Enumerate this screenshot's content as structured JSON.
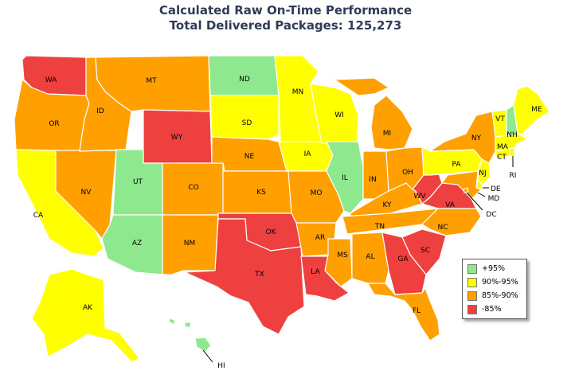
{
  "title": {
    "line1": "Calculated Raw On-Time Performance",
    "line2": "Total Delivered Packages:  125,273"
  },
  "legend": [
    {
      "key": "gt95",
      "label": "+95%",
      "color": "#8ee88e"
    },
    {
      "key": "b90",
      "label": "90%-95%",
      "color": "#ffff00"
    },
    {
      "key": "b85",
      "label": "85%-90%",
      "color": "#ff9f00"
    },
    {
      "key": "lt85",
      "label": "-85%",
      "color": "#ef4040"
    }
  ],
  "states": [
    {
      "abbr": "WA",
      "category": "lt85"
    },
    {
      "abbr": "OR",
      "category": "b85"
    },
    {
      "abbr": "CA",
      "category": "b90"
    },
    {
      "abbr": "NV",
      "category": "b85"
    },
    {
      "abbr": "ID",
      "category": "b85"
    },
    {
      "abbr": "MT",
      "category": "b85"
    },
    {
      "abbr": "WY",
      "category": "lt85"
    },
    {
      "abbr": "UT",
      "category": "gt95"
    },
    {
      "abbr": "AZ",
      "category": "gt95"
    },
    {
      "abbr": "CO",
      "category": "b85"
    },
    {
      "abbr": "NM",
      "category": "b85"
    },
    {
      "abbr": "ND",
      "category": "gt95"
    },
    {
      "abbr": "SD",
      "category": "b90"
    },
    {
      "abbr": "NE",
      "category": "b85"
    },
    {
      "abbr": "KS",
      "category": "b85"
    },
    {
      "abbr": "OK",
      "category": "lt85"
    },
    {
      "abbr": "TX",
      "category": "lt85"
    },
    {
      "abbr": "MN",
      "category": "b90"
    },
    {
      "abbr": "IA",
      "category": "b90"
    },
    {
      "abbr": "MO",
      "category": "b85"
    },
    {
      "abbr": "AR",
      "category": "b85"
    },
    {
      "abbr": "LA",
      "category": "lt85"
    },
    {
      "abbr": "WI",
      "category": "b90"
    },
    {
      "abbr": "IL",
      "category": "gt95"
    },
    {
      "abbr": "MS",
      "category": "b85"
    },
    {
      "abbr": "MI",
      "category": "b85"
    },
    {
      "abbr": "IN",
      "category": "b85"
    },
    {
      "abbr": "KY",
      "category": "b85"
    },
    {
      "abbr": "TN",
      "category": "b85"
    },
    {
      "abbr": "AL",
      "category": "b85"
    },
    {
      "abbr": "OH",
      "category": "b85"
    },
    {
      "abbr": "WV",
      "category": "lt85"
    },
    {
      "abbr": "VA",
      "category": "lt85"
    },
    {
      "abbr": "NC",
      "category": "b85"
    },
    {
      "abbr": "SC",
      "category": "lt85"
    },
    {
      "abbr": "GA",
      "category": "lt85"
    },
    {
      "abbr": "FL",
      "category": "b85"
    },
    {
      "abbr": "PA",
      "category": "b90"
    },
    {
      "abbr": "NY",
      "category": "b85"
    },
    {
      "abbr": "NJ",
      "category": "b90"
    },
    {
      "abbr": "DE",
      "category": "b90"
    },
    {
      "abbr": "MD",
      "category": "b85"
    },
    {
      "abbr": "DC",
      "category": "b85"
    },
    {
      "abbr": "CT",
      "category": "b90"
    },
    {
      "abbr": "RI",
      "category": "b90"
    },
    {
      "abbr": "MA",
      "category": "b90"
    },
    {
      "abbr": "VT",
      "category": "b90"
    },
    {
      "abbr": "NH",
      "category": "gt95"
    },
    {
      "abbr": "ME",
      "category": "b90"
    },
    {
      "abbr": "AK",
      "category": "b90"
    },
    {
      "abbr": "HI",
      "category": "gt95"
    }
  ]
}
